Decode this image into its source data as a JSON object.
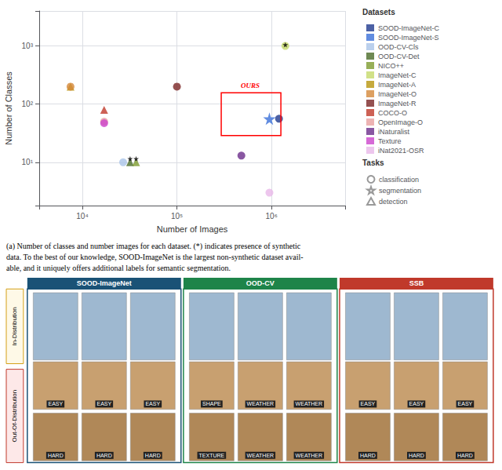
{
  "chart_data": {
    "type": "scatter",
    "xlabel": "Number of Images",
    "ylabel": "Number of Classes",
    "log": true,
    "xlim": [
      3500,
      6000000
    ],
    "ylim": [
      1.8,
      4000
    ],
    "xticks": [
      {
        "value": 10000,
        "label": "10⁴"
      },
      {
        "value": 100000,
        "label": "10⁵"
      },
      {
        "value": 1000000,
        "label": "10⁶"
      }
    ],
    "yticks": [
      {
        "value": 10,
        "label": "10¹"
      },
      {
        "value": 100,
        "label": "10²"
      },
      {
        "value": 1000,
        "label": "10³"
      }
    ],
    "grid": true,
    "legend": "right",
    "legend_title": "Datasets",
    "series": [
      {
        "name": "SOOD-ImageNet-C",
        "color": "#1f3a8f",
        "marker": "circle",
        "x": [
          1200000
        ],
        "values": [
          56
        ]
      },
      {
        "name": "SOOD-ImageNet-S",
        "color": "#3a6fd8",
        "marker": "star",
        "x": [
          950000
        ],
        "values": [
          56
        ]
      },
      {
        "name": "OOD-CV-Cls",
        "color": "#aac4e8",
        "marker": "circle",
        "x": [
          27000
        ],
        "values": [
          10
        ]
      },
      {
        "name": "OOD-CV-Det",
        "color": "#4a6b28",
        "marker": "triangle",
        "x": [
          32000
        ],
        "values": [
          10
        ]
      },
      {
        "name": "NICO++",
        "color": "#7d9b2e",
        "marker": "triangle",
        "x": [
          37000
        ],
        "values": [
          10
        ]
      },
      {
        "name": "ImageNet-C",
        "color": "#c5d96a",
        "marker": "circle",
        "x": [
          1400000
        ],
        "values": [
          1000
        ]
      },
      {
        "name": "ImageNet-A",
        "color": "#b8950c",
        "marker": "triangle",
        "x": [
          7500
        ],
        "values": [
          200
        ]
      },
      {
        "name": "ImageNet-O",
        "color": "#d4883a",
        "marker": "circle",
        "x": [
          7500
        ],
        "values": [
          200
        ]
      },
      {
        "name": "ImageNet-R",
        "color": "#7b2525",
        "marker": "circle",
        "x": [
          100000
        ],
        "values": [
          200
        ]
      },
      {
        "name": "COCO-O",
        "color": "#c0392b",
        "marker": "triangle",
        "x": [
          17000
        ],
        "values": [
          80
        ]
      },
      {
        "name": "OpenImage-O",
        "color": "#e8a0a0",
        "marker": "circle",
        "x": [
          17000
        ],
        "values": [
          50
        ]
      },
      {
        "name": "iNaturalist",
        "color": "#6b2d8b",
        "marker": "circle",
        "x": [
          480000
        ],
        "values": [
          13
        ]
      },
      {
        "name": "Texture",
        "color": "#cc44cc",
        "marker": "circle",
        "x": [
          17000
        ],
        "values": [
          47
        ]
      },
      {
        "name": "iNat2021-OSR",
        "color": "#e8b8e8",
        "marker": "circle",
        "x": [
          950000
        ],
        "values": [
          3
        ]
      },
      {
        "color": "#000000",
        "marker": "star",
        "x": [
          1400000,
          32000,
          37000
        ],
        "values": [
          1050,
          11.5,
          11.5
        ]
      }
    ],
    "task_legend": {
      "title": "Tasks",
      "color": "#808080",
      "entries": [
        {
          "name": "classification",
          "marker": "circle"
        },
        {
          "name": "segmentation",
          "marker": "star"
        },
        {
          "name": "detection",
          "marker": "triangle"
        }
      ]
    },
    "annotations": [
      {
        "text": "OURS",
        "color": "#ff0000"
      }
    ],
    "caption": "(a) Number of classes and number images for each dataset. (*) indicates presence of synthetic\ndata. To the best of our knowledge, SOOD-ImageNet is the largest non-synthetic dataset avail-\nable, and it uniquely offers additional labels for semantic segmentation.",
    "panel": {
      "section_titles": [
        "SOOD-ImageNet",
        "OOD-CV",
        "SSB"
      ],
      "section_colors": [
        "#1a5276",
        "#1e8449",
        "#c0392b"
      ],
      "row_labels_easy": [
        [
          "EASY",
          "EASY",
          "EASY"
        ],
        [
          "SHAPE",
          "WEATHER",
          "WEATHER"
        ],
        [
          "EASY",
          "EASY",
          "EASY"
        ]
      ],
      "row_labels_hard": [
        [
          "HARD",
          "HARD",
          "HARD"
        ],
        [
          "TEXTURE",
          "WEATHER",
          "WEATHER"
        ],
        [
          "HARD",
          "HARD",
          "HARD"
        ]
      ],
      "in_distribution_label": "In-Distribution",
      "out_distribution_label": "Out-Of-Distribution",
      "indist_border_color": "#d4a017",
      "outdist_border_color": "#c0392b"
    }
  }
}
